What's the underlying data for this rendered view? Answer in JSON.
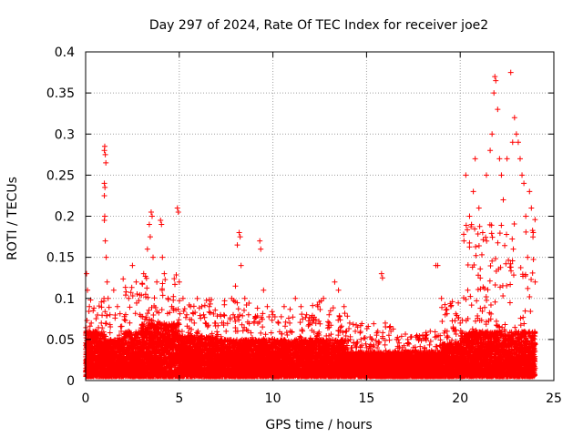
{
  "chart_data": {
    "type": "scatter",
    "title": "Day 297 of 2024, Rate Of TEC Index for receiver joe2",
    "xlabel": "GPS time / hours",
    "ylabel": "ROTI / TECUs",
    "xlim": [
      0,
      25
    ],
    "ylim": [
      0,
      0.4
    ],
    "x_ticks": [
      "0",
      "5",
      "10",
      "15",
      "20",
      "25"
    ],
    "y_ticks": [
      "0",
      "0.05",
      "0.1",
      "0.15",
      "0.2",
      "0.25",
      "0.3",
      "0.35",
      "0.4"
    ],
    "x_tick_values": [
      0,
      5,
      10,
      15,
      20,
      25
    ],
    "y_tick_values": [
      0,
      0.05,
      0.1,
      0.15,
      0.2,
      0.25,
      0.3,
      0.35,
      0.4
    ],
    "grid": true,
    "marker": "plus",
    "series": [
      {
        "color": "#ff0000",
        "points": [
          [
            0.05,
            0.13
          ],
          [
            0.1,
            0.11
          ],
          [
            0.2,
            0.09
          ],
          [
            0.3,
            0.07
          ],
          [
            0.4,
            0.085
          ],
          [
            0.5,
            0.06
          ],
          [
            0.2,
            0.03
          ],
          [
            0.4,
            0.02
          ],
          [
            0.6,
            0.04
          ],
          [
            0.8,
            0.05
          ],
          [
            1.0,
            0.28
          ],
          [
            1.02,
            0.285
          ],
          [
            1.05,
            0.275
          ],
          [
            1.08,
            0.265
          ],
          [
            1.0,
            0.24
          ],
          [
            1.03,
            0.235
          ],
          [
            1.0,
            0.225
          ],
          [
            1.02,
            0.2
          ],
          [
            1.0,
            0.195
          ],
          [
            1.05,
            0.17
          ],
          [
            1.1,
            0.15
          ],
          [
            1.15,
            0.12
          ],
          [
            1.2,
            0.1
          ],
          [
            1.3,
            0.08
          ],
          [
            1.5,
            0.11
          ],
          [
            1.7,
            0.09
          ],
          [
            1.9,
            0.06
          ],
          [
            2.0,
            0.04
          ],
          [
            2.3,
            0.1
          ],
          [
            2.5,
            0.14
          ],
          [
            2.7,
            0.12
          ],
          [
            2.9,
            0.08
          ],
          [
            3.1,
            0.13
          ],
          [
            3.3,
            0.16
          ],
          [
            3.4,
            0.19
          ],
          [
            3.5,
            0.205
          ],
          [
            3.55,
            0.2
          ],
          [
            3.45,
            0.175
          ],
          [
            3.6,
            0.15
          ],
          [
            3.8,
            0.12
          ],
          [
            4.0,
            0.195
          ],
          [
            4.05,
            0.19
          ],
          [
            4.1,
            0.15
          ],
          [
            4.2,
            0.13
          ],
          [
            4.4,
            0.1
          ],
          [
            4.6,
            0.09
          ],
          [
            4.9,
            0.21
          ],
          [
            4.95,
            0.205
          ],
          [
            5.0,
            0.12
          ],
          [
            5.2,
            0.1
          ],
          [
            5.4,
            0.08
          ],
          [
            5.6,
            0.09
          ],
          [
            5.8,
            0.07
          ],
          [
            6.0,
            0.06
          ],
          [
            6.3,
            0.08
          ],
          [
            6.6,
            0.09
          ],
          [
            6.9,
            0.07
          ],
          [
            7.2,
            0.08
          ],
          [
            7.5,
            0.06
          ],
          [
            7.8,
            0.1
          ],
          [
            8.0,
            0.115
          ],
          [
            8.1,
            0.165
          ],
          [
            8.2,
            0.18
          ],
          [
            8.25,
            0.175
          ],
          [
            8.3,
            0.14
          ],
          [
            8.5,
            0.1
          ],
          [
            8.7,
            0.08
          ],
          [
            9.0,
            0.07
          ],
          [
            9.3,
            0.17
          ],
          [
            9.35,
            0.16
          ],
          [
            9.5,
            0.11
          ],
          [
            9.7,
            0.09
          ],
          [
            10.0,
            0.08
          ],
          [
            10.3,
            0.07
          ],
          [
            10.6,
            0.09
          ],
          [
            10.9,
            0.07
          ],
          [
            11.2,
            0.1
          ],
          [
            11.5,
            0.09
          ],
          [
            11.8,
            0.08
          ],
          [
            12.1,
            0.07
          ],
          [
            12.4,
            0.09
          ],
          [
            12.7,
            0.1
          ],
          [
            13.0,
            0.08
          ],
          [
            13.3,
            0.12
          ],
          [
            13.5,
            0.11
          ],
          [
            13.8,
            0.09
          ],
          [
            14.1,
            0.07
          ],
          [
            14.4,
            0.06
          ],
          [
            14.7,
            0.05
          ],
          [
            15.0,
            0.04
          ],
          [
            15.3,
            0.05
          ],
          [
            15.6,
            0.06
          ],
          [
            15.8,
            0.13
          ],
          [
            15.85,
            0.125
          ],
          [
            16.0,
            0.07
          ],
          [
            16.3,
            0.06
          ],
          [
            16.6,
            0.05
          ],
          [
            16.9,
            0.04
          ],
          [
            17.2,
            0.05
          ],
          [
            17.5,
            0.04
          ],
          [
            17.8,
            0.05
          ],
          [
            18.1,
            0.04
          ],
          [
            18.4,
            0.06
          ],
          [
            18.7,
            0.14
          ],
          [
            18.8,
            0.14
          ],
          [
            19.0,
            0.1
          ],
          [
            19.2,
            0.08
          ],
          [
            19.5,
            0.09
          ],
          [
            19.7,
            0.06
          ],
          [
            20.0,
            0.07
          ],
          [
            20.2,
            0.17
          ],
          [
            20.3,
            0.25
          ],
          [
            20.5,
            0.2
          ],
          [
            20.7,
            0.23
          ],
          [
            20.8,
            0.27
          ],
          [
            21.0,
            0.21
          ],
          [
            21.2,
            0.18
          ],
          [
            21.4,
            0.25
          ],
          [
            21.6,
            0.28
          ],
          [
            21.7,
            0.3
          ],
          [
            21.8,
            0.35
          ],
          [
            21.9,
            0.365
          ],
          [
            21.85,
            0.37
          ],
          [
            22.0,
            0.33
          ],
          [
            22.1,
            0.27
          ],
          [
            22.2,
            0.25
          ],
          [
            22.3,
            0.22
          ],
          [
            22.5,
            0.27
          ],
          [
            22.7,
            0.375
          ],
          [
            22.8,
            0.29
          ],
          [
            22.9,
            0.32
          ],
          [
            23.0,
            0.3
          ],
          [
            23.1,
            0.29
          ],
          [
            23.2,
            0.27
          ],
          [
            23.3,
            0.25
          ],
          [
            23.4,
            0.24
          ],
          [
            23.5,
            0.2
          ],
          [
            23.6,
            0.15
          ],
          [
            23.7,
            0.23
          ],
          [
            23.8,
            0.21
          ],
          [
            23.9,
            0.18
          ],
          [
            24.0,
            0.12
          ]
        ]
      }
    ],
    "dense_band": {
      "description_free": true,
      "floor": 0.005,
      "segments": [
        [
          0.0,
          1.0,
          0.06
        ],
        [
          1.0,
          2.0,
          0.05
        ],
        [
          2.0,
          3.0,
          0.06
        ],
        [
          3.0,
          5.0,
          0.07
        ],
        [
          5.0,
          7.0,
          0.055
        ],
        [
          7.0,
          9.0,
          0.05
        ],
        [
          9.0,
          12.0,
          0.05
        ],
        [
          12.0,
          14.0,
          0.05
        ],
        [
          14.0,
          17.0,
          0.035
        ],
        [
          17.0,
          19.0,
          0.035
        ],
        [
          19.0,
          20.0,
          0.045
        ],
        [
          20.0,
          24.0,
          0.06
        ]
      ],
      "upper_spikes": [
        [
          0.0,
          1.0,
          0.1
        ],
        [
          1.0,
          2.0,
          0.09
        ],
        [
          2.0,
          5.0,
          0.13
        ],
        [
          5.0,
          7.0,
          0.1
        ],
        [
          7.0,
          9.0,
          0.1
        ],
        [
          9.0,
          12.0,
          0.09
        ],
        [
          12.0,
          14.0,
          0.1
        ],
        [
          14.0,
          17.0,
          0.07
        ],
        [
          17.0,
          19.0,
          0.06
        ],
        [
          19.0,
          20.0,
          0.1
        ],
        [
          20.0,
          24.0,
          0.2
        ]
      ]
    }
  }
}
